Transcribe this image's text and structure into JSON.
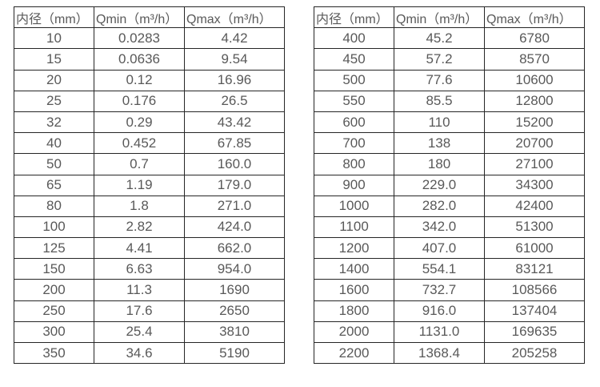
{
  "colors": {
    "text": "#595959",
    "border": "#262626",
    "background": "#ffffff"
  },
  "tables": [
    {
      "name": "flow-range-table-small-diameters",
      "headers": [
        "内径（mm）",
        "Qmin（m³/h）",
        "Qmax（m³/h）"
      ],
      "rows": [
        [
          "10",
          "0.0283",
          "4.42"
        ],
        [
          "15",
          "0.0636",
          "9.54"
        ],
        [
          "20",
          "0.12",
          "16.96"
        ],
        [
          "25",
          "0.176",
          "26.5"
        ],
        [
          "32",
          "0.29",
          "43.42"
        ],
        [
          "40",
          "0.452",
          "67.85"
        ],
        [
          "50",
          "0.7",
          "160.0"
        ],
        [
          "65",
          "1.19",
          "179.0"
        ],
        [
          "80",
          "1.8",
          "271.0"
        ],
        [
          "100",
          "2.82",
          "424.0"
        ],
        [
          "125",
          "4.41",
          "662.0"
        ],
        [
          "150",
          "6.63",
          "954.0"
        ],
        [
          "200",
          "11.3",
          "1690"
        ],
        [
          "250",
          "17.6",
          "2650"
        ],
        [
          "300",
          "25.4",
          "3810"
        ],
        [
          "350",
          "34.6",
          "5190"
        ]
      ]
    },
    {
      "name": "flow-range-table-large-diameters",
      "headers": [
        "内径（mm）",
        "Qmin（m³/h）",
        "Qmax（m³/h）"
      ],
      "rows": [
        [
          "400",
          "45.2",
          "6780"
        ],
        [
          "450",
          "57.2",
          "8570"
        ],
        [
          "500",
          "77.6",
          "10600"
        ],
        [
          "550",
          "85.5",
          "12800"
        ],
        [
          "600",
          "110",
          "15200"
        ],
        [
          "700",
          "138",
          "20700"
        ],
        [
          "800",
          "180",
          "27100"
        ],
        [
          "900",
          "229.0",
          "34300"
        ],
        [
          "1000",
          "282.0",
          "42400"
        ],
        [
          "1100",
          "342.0",
          "51300"
        ],
        [
          "1200",
          "407.0",
          "61000"
        ],
        [
          "1400",
          "554.1",
          "83121"
        ],
        [
          "1600",
          "732.7",
          "108566"
        ],
        [
          "1800",
          "916.0",
          "137404"
        ],
        [
          "2000",
          "1131.0",
          "169635"
        ],
        [
          "2200",
          "1368.4",
          "205258"
        ]
      ]
    }
  ]
}
